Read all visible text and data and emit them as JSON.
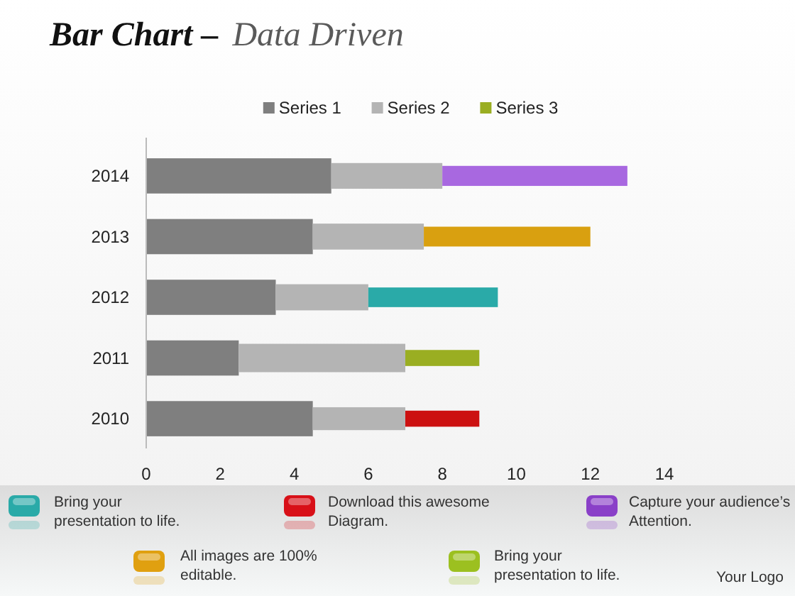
{
  "chart_data": {
    "type": "bar",
    "orientation": "horizontal",
    "stacked": true,
    "title": "Bar Chart –",
    "subtitle": "Data Driven",
    "categories": [
      "2014",
      "2013",
      "2012",
      "2011",
      "2010"
    ],
    "series": [
      {
        "name": "Series 1",
        "color": "#7f7f7f",
        "values": [
          5,
          4.5,
          3.5,
          2.5,
          4.5
        ]
      },
      {
        "name": "Series 2",
        "color": "#b4b4b4",
        "values": [
          3,
          3,
          2.5,
          4.5,
          2.5
        ]
      },
      {
        "name": "Series 3",
        "color": "#9aae22",
        "colors": [
          "#a868e0",
          "#d9a010",
          "#2aaaa8",
          "#9aae22",
          "#cc1111"
        ],
        "values": [
          5,
          4.5,
          3.5,
          2,
          2
        ]
      }
    ],
    "xlim": [
      0,
      14
    ],
    "xticks": [
      0,
      2,
      4,
      6,
      8,
      10,
      12,
      14
    ],
    "legend": "top",
    "annotations": [
      "Bring your\npresentation to life.",
      "Download this awesome\nDiagram.",
      "Capture your audience’s\nAttention.",
      "All images are 100%\neditable.",
      "Bring your\npresentation to life.",
      "Your Logo"
    ]
  }
}
